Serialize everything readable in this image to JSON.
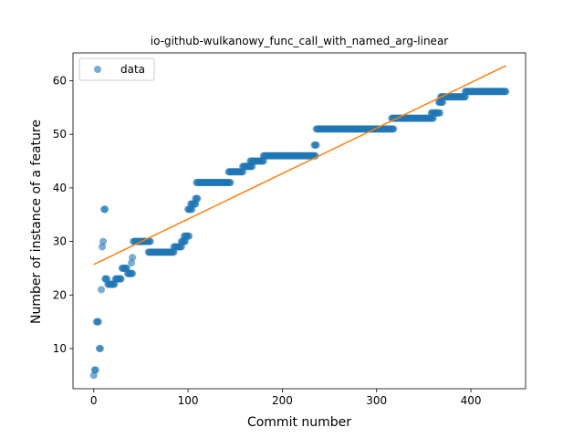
{
  "chart_data": {
    "type": "scatter",
    "title": "io-github-wulkanowy_func_call_with_named_arg-linear",
    "xlabel": "Commit number",
    "ylabel": "Number of instance of a feature",
    "xlim": [
      -22,
      458
    ],
    "ylim": [
      2.5,
      65.2
    ],
    "xticks": [
      0,
      100,
      200,
      300,
      400
    ],
    "yticks": [
      10,
      20,
      30,
      40,
      50,
      60
    ],
    "grid": false,
    "legend": {
      "position": "top-left",
      "entries": [
        "data"
      ]
    },
    "colors": {
      "data": "#1f77b4",
      "fit": "#ff7f0e"
    },
    "series": [
      {
        "name": "data",
        "kind": "scatter",
        "segments": [
          [
            0,
            0,
            5
          ],
          [
            1,
            2,
            6
          ],
          [
            3,
            5,
            15
          ],
          [
            6,
            7,
            10
          ],
          [
            8,
            8,
            21
          ],
          [
            9,
            9,
            29
          ],
          [
            10,
            10,
            30
          ],
          [
            11,
            12,
            36
          ],
          [
            12,
            14,
            23
          ],
          [
            15,
            22,
            22
          ],
          [
            23,
            29,
            23
          ],
          [
            30,
            35,
            25
          ],
          [
            36,
            41,
            24
          ],
          [
            40,
            40,
            26
          ],
          [
            41,
            41,
            27
          ],
          [
            42,
            60,
            30
          ],
          [
            58,
            85,
            28
          ],
          [
            85,
            93,
            29
          ],
          [
            93,
            97,
            30
          ],
          [
            96,
            101,
            31
          ],
          [
            100,
            104,
            36
          ],
          [
            103,
            108,
            37
          ],
          [
            108,
            110,
            38
          ],
          [
            109,
            145,
            41
          ],
          [
            143,
            158,
            43
          ],
          [
            158,
            168,
            44
          ],
          [
            166,
            180,
            45
          ],
          [
            180,
            235,
            46
          ],
          [
            234,
            236,
            48
          ],
          [
            236,
            318,
            51
          ],
          [
            316,
            360,
            53
          ],
          [
            358,
            367,
            54
          ],
          [
            366,
            370,
            56
          ],
          [
            368,
            394,
            57
          ],
          [
            394,
            437,
            58
          ]
        ]
      },
      {
        "name": "fit",
        "kind": "line",
        "x": [
          0,
          437
        ],
        "y": [
          25.7,
          62.8
        ]
      }
    ]
  }
}
